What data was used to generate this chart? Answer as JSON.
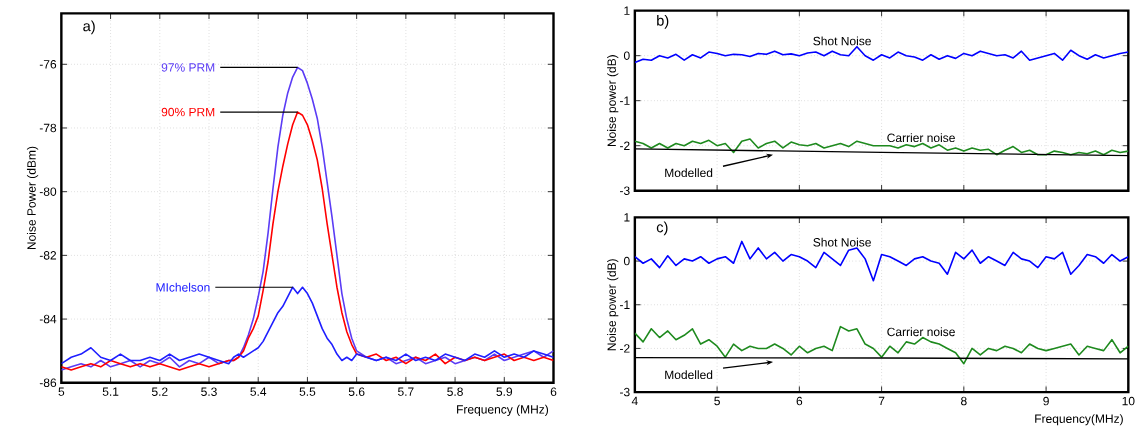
{
  "chart_data": [
    {
      "type": "line",
      "xlabel": "Frequency (MHz)",
      "ylabel": "Noise Power (dBm)",
      "annotations": [
        "a)"
      ],
      "grid": true,
      "xlim": [
        5,
        6
      ],
      "ylim": [
        -86,
        -74.4
      ],
      "xticks": [
        5,
        5.1,
        5.2,
        5.3,
        5.4,
        5.5,
        5.6,
        5.7,
        5.8,
        5.9,
        6
      ],
      "yticks": [
        -86,
        -84,
        -82,
        -80,
        -78,
        -76
      ],
      "x": [
        5.0,
        5.02,
        5.04,
        5.06,
        5.08,
        5.1,
        5.12,
        5.14,
        5.16,
        5.18,
        5.2,
        5.22,
        5.24,
        5.26,
        5.28,
        5.3,
        5.32,
        5.34,
        5.35,
        5.36,
        5.37,
        5.38,
        5.39,
        5.4,
        5.41,
        5.42,
        5.43,
        5.44,
        5.45,
        5.46,
        5.47,
        5.48,
        5.49,
        5.5,
        5.51,
        5.52,
        5.53,
        5.54,
        5.55,
        5.56,
        5.57,
        5.58,
        5.59,
        5.6,
        5.62,
        5.64,
        5.66,
        5.68,
        5.7,
        5.72,
        5.74,
        5.76,
        5.78,
        5.8,
        5.82,
        5.84,
        5.86,
        5.88,
        5.9,
        5.92,
        5.94,
        5.96,
        5.98,
        6.0
      ],
      "series": [
        {
          "name": "97% PRM",
          "color": "#5b3cf5",
          "values": [
            -85.6,
            -85.5,
            -85.4,
            -85.5,
            -85.3,
            -85.5,
            -85.4,
            -85.3,
            -85.5,
            -85.3,
            -85.4,
            -85.2,
            -85.5,
            -85.3,
            -85.4,
            -85.2,
            -85.4,
            -85.3,
            -85.3,
            -85.2,
            -84.9,
            -84.5,
            -84.0,
            -83.3,
            -82.5,
            -81.3,
            -79.9,
            -78.6,
            -77.6,
            -76.9,
            -76.4,
            -76.1,
            -76.2,
            -76.6,
            -77.1,
            -77.7,
            -78.6,
            -79.7,
            -80.8,
            -82.0,
            -83.2,
            -84.0,
            -84.6,
            -85.0,
            -85.2,
            -85.3,
            -85.2,
            -85.4,
            -85.3,
            -85.2,
            -85.4,
            -85.3,
            -85.2,
            -85.4,
            -85.3,
            -85.2,
            -85.3,
            -85.1,
            -85.3,
            -85.2,
            -85.1,
            -85.0,
            -85.2,
            -85.0
          ]
        },
        {
          "name": "90% PRM",
          "color": "#ff0000",
          "values": [
            -85.5,
            -85.6,
            -85.5,
            -85.4,
            -85.5,
            -85.3,
            -85.4,
            -85.5,
            -85.4,
            -85.5,
            -85.4,
            -85.5,
            -85.6,
            -85.5,
            -85.4,
            -85.5,
            -85.4,
            -85.3,
            -85.3,
            -85.2,
            -85.0,
            -84.6,
            -84.3,
            -83.9,
            -83.1,
            -82.2,
            -81.0,
            -80.0,
            -79.2,
            -78.5,
            -77.9,
            -77.5,
            -77.6,
            -77.9,
            -78.4,
            -79.0,
            -79.9,
            -81.0,
            -82.0,
            -83.0,
            -83.8,
            -84.4,
            -84.8,
            -85.1,
            -85.2,
            -85.1,
            -85.3,
            -85.2,
            -85.4,
            -85.2,
            -85.3,
            -85.1,
            -85.4,
            -85.2,
            -85.3,
            -85.2,
            -85.3,
            -85.2,
            -85.1,
            -85.3,
            -85.2,
            -85.3,
            -85.2,
            -85.3
          ]
        },
        {
          "name": "MIchelson",
          "color": "#1f1fff",
          "values": [
            -85.4,
            -85.2,
            -85.1,
            -84.9,
            -85.2,
            -85.3,
            -85.1,
            -85.3,
            -85.3,
            -85.2,
            -85.3,
            -85.1,
            -85.3,
            -85.2,
            -85.1,
            -85.2,
            -85.3,
            -85.4,
            -85.2,
            -85.1,
            -85.2,
            -85.1,
            -85.0,
            -84.9,
            -84.7,
            -84.4,
            -84.1,
            -83.8,
            -83.6,
            -83.3,
            -83.0,
            -83.2,
            -83.0,
            -83.2,
            -83.5,
            -83.9,
            -84.3,
            -84.6,
            -84.8,
            -85.1,
            -85.3,
            -85.2,
            -85.3,
            -85.1,
            -85.2,
            -85.3,
            -85.2,
            -85.3,
            -85.1,
            -85.3,
            -85.2,
            -85.3,
            -85.1,
            -85.2,
            -85.3,
            -85.1,
            -85.2,
            -85.0,
            -85.2,
            -85.1,
            -85.2,
            -85.0,
            -85.1,
            -85.2
          ]
        }
      ]
    },
    {
      "type": "line",
      "ylabel": "Noise power (dB)",
      "annotations": [
        "b)"
      ],
      "grid": true,
      "tick_labels": "y",
      "xlim": [
        4,
        10
      ],
      "ylim": [
        -3,
        1
      ],
      "xticks": [
        4,
        5,
        6,
        7,
        8,
        9,
        10
      ],
      "yticks": [
        -3,
        -2,
        -1,
        0,
        1
      ],
      "x": [
        4.0,
        4.1,
        4.2,
        4.3,
        4.4,
        4.5,
        4.6,
        4.7,
        4.8,
        4.9,
        5.0,
        5.1,
        5.2,
        5.3,
        5.4,
        5.5,
        5.6,
        5.7,
        5.8,
        5.9,
        6.0,
        6.1,
        6.2,
        6.3,
        6.4,
        6.5,
        6.6,
        6.7,
        6.8,
        6.9,
        7.0,
        7.1,
        7.2,
        7.3,
        7.4,
        7.5,
        7.6,
        7.7,
        7.8,
        7.9,
        8.0,
        8.1,
        8.2,
        8.3,
        8.4,
        8.5,
        8.6,
        8.7,
        8.8,
        8.9,
        9.0,
        9.1,
        9.2,
        9.3,
        9.4,
        9.5,
        9.6,
        9.7,
        9.8,
        9.9,
        10.0
      ],
      "series": [
        {
          "name": "Shot Noise",
          "color": "#0000ff",
          "values": [
            -0.15,
            -0.08,
            -0.1,
            0.0,
            -0.05,
            0.03,
            -0.1,
            0.02,
            -0.05,
            0.08,
            0.05,
            0.0,
            0.03,
            0.02,
            -0.02,
            0.05,
            0.03,
            0.1,
            0.02,
            0.04,
            0.0,
            0.06,
            0.08,
            0.0,
            0.1,
            0.02,
            0.0,
            0.2,
            0.0,
            -0.1,
            0.02,
            -0.05,
            0.08,
            0.0,
            -0.03,
            -0.1,
            0.02,
            -0.08,
            0.0,
            -0.06,
            0.05,
            0.0,
            0.1,
            0.05,
            0.0,
            0.02,
            -0.05,
            0.1,
            -0.1,
            -0.05,
            0.0,
            0.05,
            -0.1,
            0.12,
            0.0,
            -0.08,
            0.02,
            -0.05,
            0.0,
            0.05,
            0.08
          ]
        },
        {
          "name": "Carrier noise",
          "color": "#1e8a1e",
          "values": [
            -1.9,
            -1.95,
            -2.05,
            -1.95,
            -2.05,
            -1.95,
            -2.0,
            -1.9,
            -1.95,
            -1.88,
            -2.0,
            -1.95,
            -2.15,
            -1.9,
            -1.85,
            -2.05,
            -1.95,
            -1.9,
            -2.05,
            -1.92,
            -1.98,
            -2.0,
            -1.95,
            -2.05,
            -2.0,
            -1.95,
            -2.02,
            -1.9,
            -1.95,
            -2.0,
            -2.0,
            -2.0,
            -2.05,
            -1.98,
            -2.02,
            -1.95,
            -2.05,
            -1.98,
            -2.1,
            -2.05,
            -2.12,
            -2.05,
            -2.1,
            -2.08,
            -2.2,
            -2.1,
            -2.02,
            -2.15,
            -2.1,
            -2.2,
            -2.2,
            -2.12,
            -2.15,
            -2.2,
            -2.15,
            -2.18,
            -2.12,
            -2.2,
            -2.1,
            -2.15,
            -2.12
          ]
        },
        {
          "name": "Modelled",
          "color": "#000000",
          "x": [
            4,
            7,
            10
          ],
          "values": [
            -2.07,
            -2.15,
            -2.22
          ]
        }
      ]
    },
    {
      "type": "line",
      "xlabel": "Frequency(MHz)",
      "ylabel": "Noise power (dB)",
      "annotations": [
        "c)"
      ],
      "grid": true,
      "xlim": [
        4,
        10
      ],
      "ylim": [
        -3,
        1
      ],
      "xticks": [
        4,
        5,
        6,
        7,
        8,
        9,
        10
      ],
      "yticks": [
        -3,
        -2,
        -1,
        0,
        1
      ],
      "x": [
        4.0,
        4.1,
        4.2,
        4.3,
        4.4,
        4.5,
        4.6,
        4.7,
        4.8,
        4.9,
        5.0,
        5.1,
        5.2,
        5.3,
        5.4,
        5.5,
        5.6,
        5.7,
        5.8,
        5.9,
        6.0,
        6.1,
        6.2,
        6.3,
        6.4,
        6.5,
        6.6,
        6.7,
        6.8,
        6.9,
        7.0,
        7.1,
        7.2,
        7.3,
        7.4,
        7.5,
        7.6,
        7.7,
        7.8,
        7.9,
        8.0,
        8.1,
        8.2,
        8.3,
        8.4,
        8.5,
        8.6,
        8.7,
        8.8,
        8.9,
        9.0,
        9.1,
        9.2,
        9.3,
        9.4,
        9.5,
        9.6,
        9.7,
        9.8,
        9.9,
        10.0
      ],
      "series": [
        {
          "name": "Shot Noise",
          "color": "#0000ff",
          "values": [
            0.1,
            -0.05,
            0.05,
            -0.15,
            0.12,
            -0.1,
            0.05,
            0.0,
            0.1,
            -0.05,
            0.05,
            0.1,
            -0.05,
            0.45,
            0.05,
            0.3,
            0.05,
            0.2,
            0.0,
            0.15,
            0.1,
            0.0,
            -0.15,
            0.2,
            0.05,
            -0.1,
            0.25,
            0.3,
            0.05,
            -0.45,
            0.15,
            0.1,
            0.0,
            -0.1,
            0.05,
            0.1,
            0.0,
            -0.05,
            -0.3,
            0.2,
            0.05,
            0.25,
            -0.05,
            0.1,
            0.0,
            -0.1,
            0.2,
            0.05,
            0.0,
            -0.15,
            0.1,
            0.05,
            0.2,
            -0.3,
            -0.1,
            0.15,
            0.1,
            -0.05,
            0.15,
            0.0,
            0.1
          ]
        },
        {
          "name": "Carrier noise",
          "color": "#1e8a1e",
          "values": [
            -1.65,
            -1.85,
            -1.55,
            -1.75,
            -1.6,
            -1.8,
            -1.7,
            -1.55,
            -1.9,
            -1.8,
            -1.95,
            -2.2,
            -1.9,
            -2.05,
            -1.95,
            -2.0,
            -2.0,
            -1.9,
            -2.0,
            -2.15,
            -1.95,
            -2.1,
            -2.0,
            -1.95,
            -2.05,
            -1.5,
            -1.6,
            -1.55,
            -1.9,
            -2.0,
            -2.2,
            -1.95,
            -2.1,
            -1.85,
            -1.9,
            -1.75,
            -1.85,
            -1.9,
            -2.0,
            -2.1,
            -2.35,
            -2.0,
            -2.15,
            -2.0,
            -2.05,
            -1.95,
            -2.0,
            -2.1,
            -1.9,
            -2.0,
            -2.05,
            -2.0,
            -1.95,
            -1.9,
            -2.15,
            -1.95,
            -2.0,
            -2.05,
            -1.8,
            -2.1,
            -1.95
          ]
        },
        {
          "name": "Modelled",
          "color": "#000000",
          "x": [
            4,
            7,
            10
          ],
          "values": [
            -2.21,
            -2.22,
            -2.24
          ]
        }
      ]
    }
  ]
}
